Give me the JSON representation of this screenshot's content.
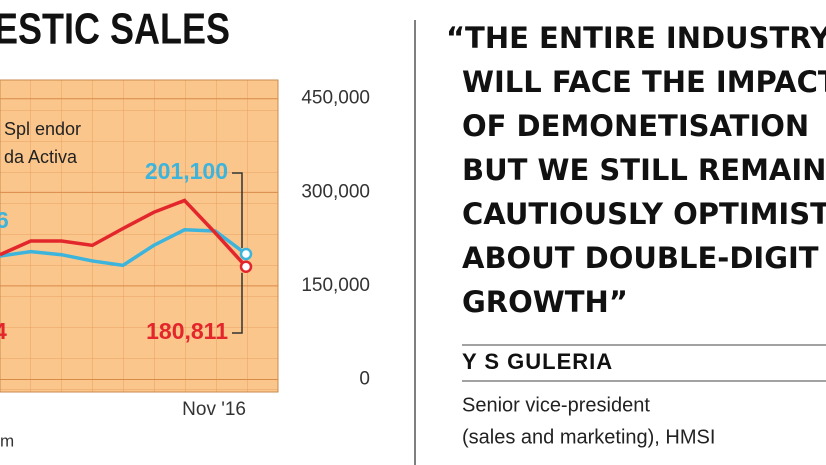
{
  "chart_data": {
    "type": "line",
    "title": "ESTIC SALES",
    "categories": [
      null,
      null,
      null,
      null,
      null,
      null,
      null,
      null,
      "Nov '16"
    ],
    "series": [
      {
        "name": "Spl endor",
        "color": "#e3262b",
        "values": [
          200000,
          222000,
          222000,
          215000,
          242000,
          268000,
          287000,
          235000,
          180811
        ],
        "value_labels": [
          null,
          null,
          null,
          null,
          null,
          null,
          null,
          null,
          "180,811"
        ]
      },
      {
        "name": "da Activa",
        "color": "#3cb4dc",
        "values": [
          198000,
          205000,
          200000,
          190000,
          183000,
          215000,
          240000,
          238000,
          201100
        ],
        "value_labels": [
          null,
          null,
          null,
          null,
          null,
          null,
          null,
          null,
          "201,100"
        ]
      }
    ],
    "annotations": [
      "6",
      "4"
    ],
    "source": "m",
    "ylim": [
      -20000,
      480000
    ],
    "yticks": [
      0,
      {
        "value": 150000,
        "label": "150,000"
      },
      {
        "value": 300000,
        "label": "300,000"
      },
      {
        "value": 450000,
        "label": "450,000"
      }
    ],
    "grid": true
  },
  "quote": {
    "lines": [
      "“THE ENTIRE INDUSTRY",
      "WILL FACE THE IMPACT",
      "OF DEMONETISATION",
      "BUT WE STILL REMAIN",
      "CAUTIOUSLY OPTIMISTIC",
      "ABOUT DOUBLE-DIGIT",
      "GROWTH”"
    ],
    "name": "Y S GULERIA",
    "role": [
      "Senior vice-president",
      "(sales and marketing), HMSI"
    ]
  }
}
